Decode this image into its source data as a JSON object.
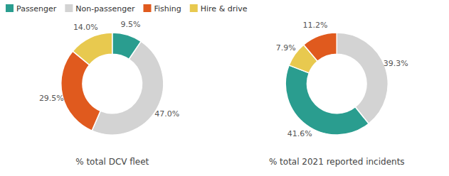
{
  "chart_data": [
    {
      "type": "pie",
      "title": "% total DCV fleet",
      "categories": [
        "Passenger",
        "Non-passenger",
        "Fishing",
        "Hire & drive"
      ],
      "values": [
        9.5,
        47.0,
        29.5,
        14.0
      ],
      "value_labels": [
        "9.5%",
        "47.0%",
        "29.5%",
        "14.0%"
      ],
      "colors": [
        "#2a9d8f",
        "#d3d3d3",
        "#e05a1e",
        "#e8c94f"
      ],
      "data_labels": true,
      "legend": "upper left"
    },
    {
      "type": "pie",
      "title": "% total 2021 reported incidents",
      "categories": [
        "Non-passenger",
        "Passenger",
        "Hire & drive",
        "Fishing"
      ],
      "values": [
        39.3,
        41.6,
        7.9,
        11.2
      ],
      "value_labels": [
        "39.3%",
        "41.6%",
        "7.9%",
        "11.2%"
      ],
      "colors": [
        "#d3d3d3",
        "#2a9d8f",
        "#e8c94f",
        "#e05a1e"
      ],
      "data_labels": true
    }
  ]
}
